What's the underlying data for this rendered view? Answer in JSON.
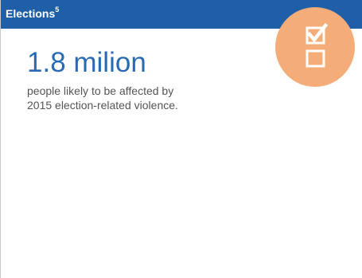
{
  "card": {
    "title": "Elections",
    "title_footnote": "5",
    "stat_value": "1.8 milion",
    "description_line1": "people likely to be affected by",
    "description_line2": "2015 election-related violence.",
    "icon": "checkbox-list-icon"
  },
  "colors": {
    "header_bg": "#1f5fa8",
    "stat_text": "#2a6ab5",
    "badge_bg": "#f4ad78",
    "body_text": "#555555"
  }
}
